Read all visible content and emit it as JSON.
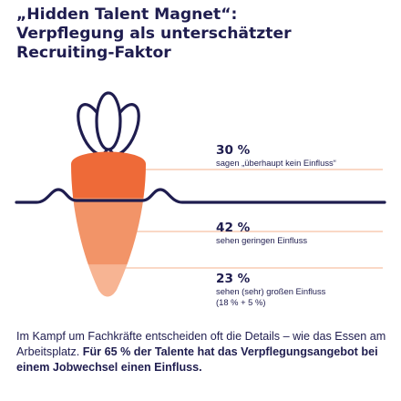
{
  "title": {
    "line1": "„Hidden Talent Magnet“:",
    "line2": "Verpflegung als unterschätzter",
    "line3": "Recruiting-Faktor"
  },
  "colors": {
    "navy": "#1f1d4f",
    "carrot_dark": "#ee6a38",
    "carrot_mid": "#f29468",
    "carrot_light": "#f7b493",
    "line": "#f4b08c"
  },
  "chart_data": {
    "type": "stacked-pictogram",
    "series": [
      {
        "pct_label": "30 %",
        "value": 30,
        "label": "sagen „überhaupt kein Einfluss“"
      },
      {
        "pct_label": "42 %",
        "value": 42,
        "label": "sehen geringen Einfluss"
      },
      {
        "pct_label": "23 %",
        "value": 23,
        "label": "sehen (sehr) großen Einfluss",
        "sublabel": "(18 % + 5 %)"
      }
    ]
  },
  "body": {
    "intro": "Im Kampf um Fachkräfte entscheiden oft die Details – wie das Essen am Arbeitsplatz.",
    "highlight": "Für 65 % der Talente hat das Verpflegungsangebot bei einem Jobwechsel einen Einfluss."
  }
}
